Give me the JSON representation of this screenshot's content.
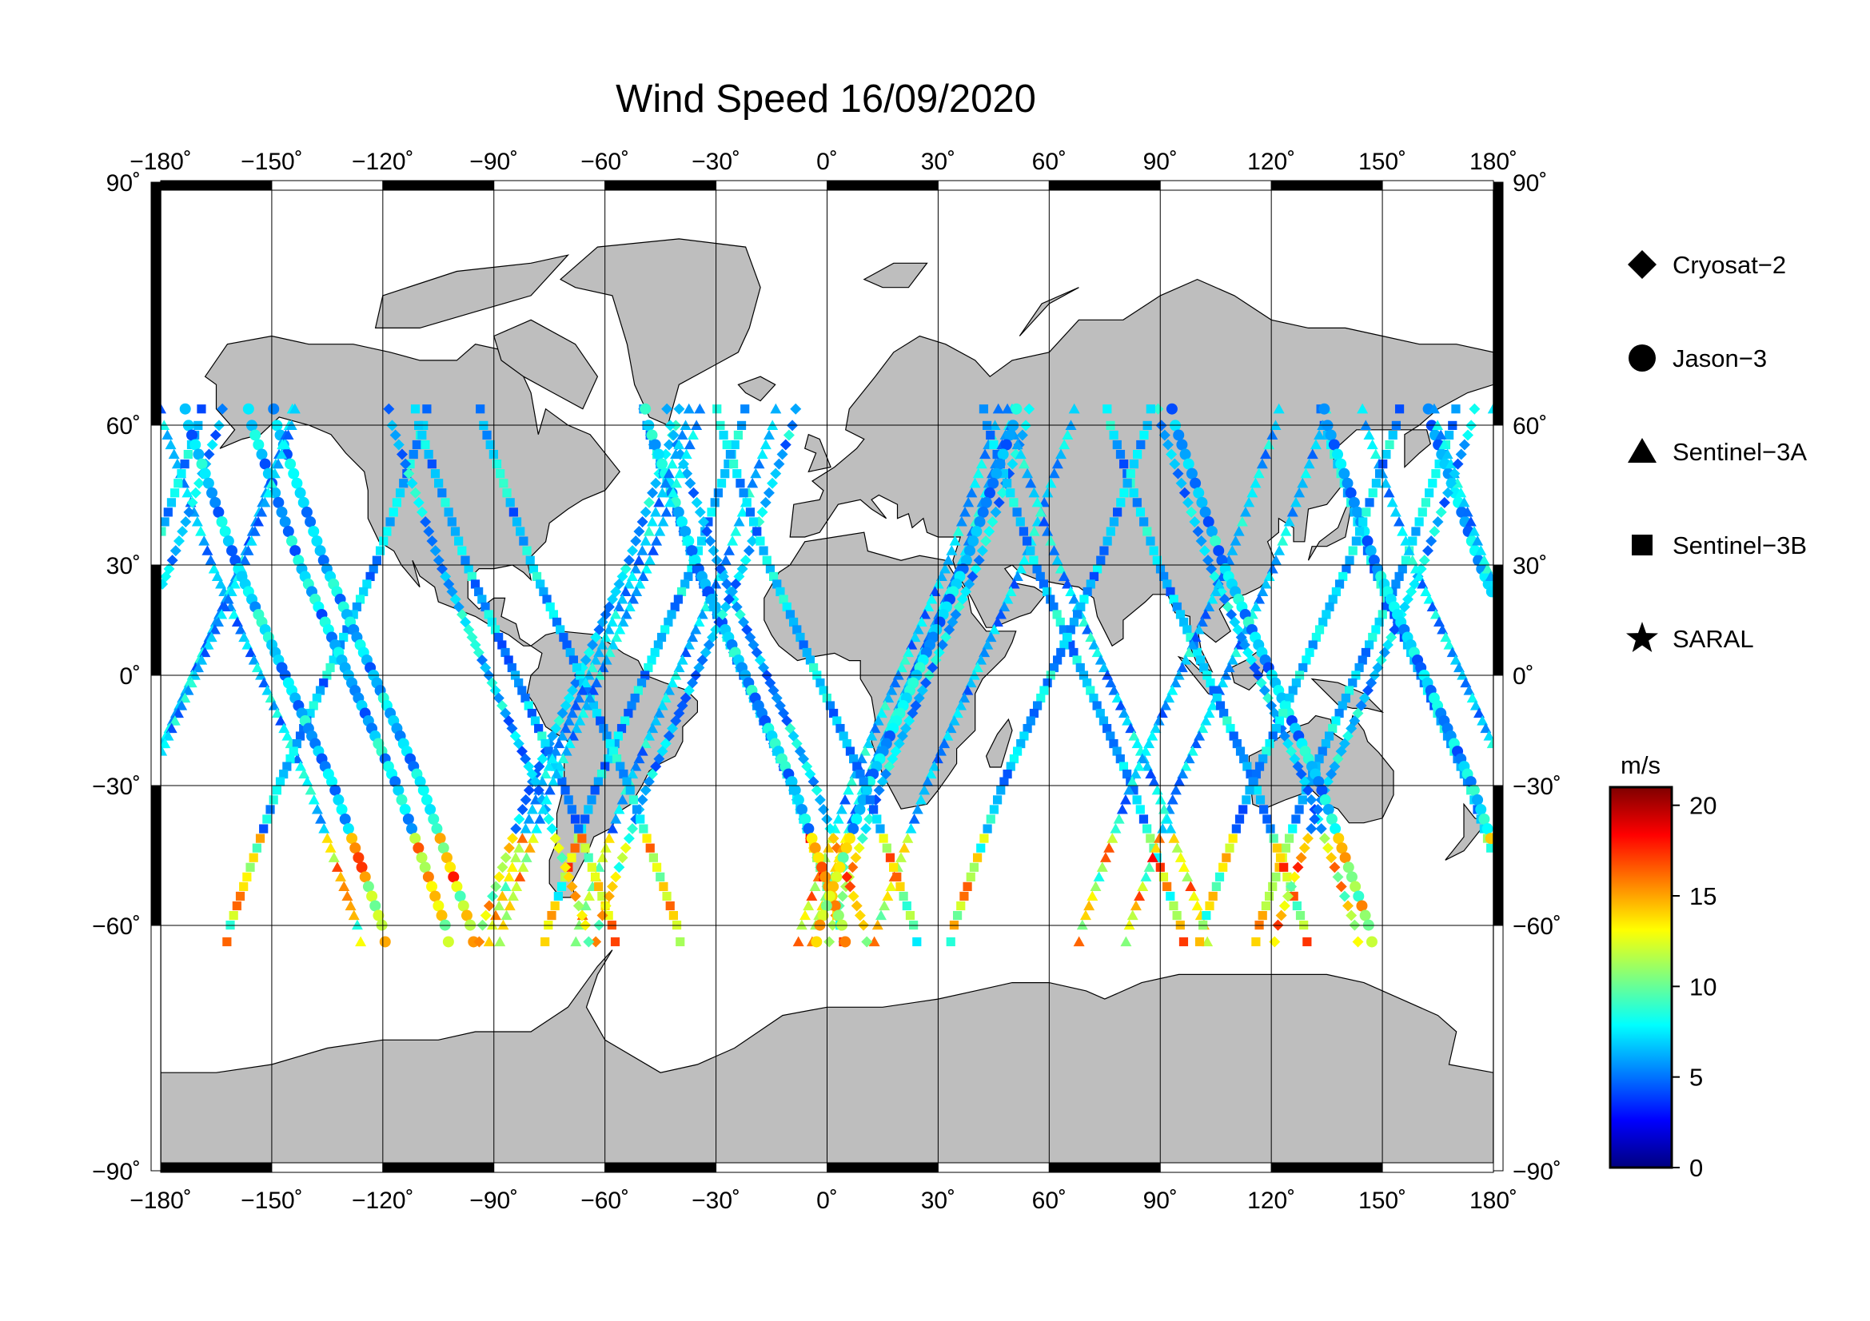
{
  "title": "Wind Speed 16/09/2020",
  "map": {
    "lon_range": [
      -180,
      180
    ],
    "lat_range": [
      -90,
      90
    ],
    "lon_ticks": [
      "−180˚",
      "−150˚",
      "−120˚",
      "−90˚",
      "−60˚",
      "−30˚",
      "0˚",
      "30˚",
      "60˚",
      "90˚",
      "120˚",
      "150˚",
      "180˚"
    ],
    "lat_ticks": [
      "90˚",
      "60˚",
      "30˚",
      "0˚",
      "−30˚",
      "−60˚",
      "−90˚"
    ],
    "land_color": "#bebebe",
    "ocean_color": "#ffffff",
    "grid": true
  },
  "legend": {
    "items": [
      {
        "label": "Cryosat−2",
        "marker": "diamond"
      },
      {
        "label": "Jason−3",
        "marker": "circle"
      },
      {
        "label": "Sentinel−3A",
        "marker": "triangle"
      },
      {
        "label": "Sentinel−3B",
        "marker": "square"
      },
      {
        "label": "SARAL",
        "marker": "star"
      }
    ]
  },
  "colorbar": {
    "unit": "m/s",
    "range": [
      0,
      21
    ],
    "tick_labels": [
      "20",
      "15",
      "10",
      "5",
      "0"
    ],
    "colormap": "jet"
  }
}
